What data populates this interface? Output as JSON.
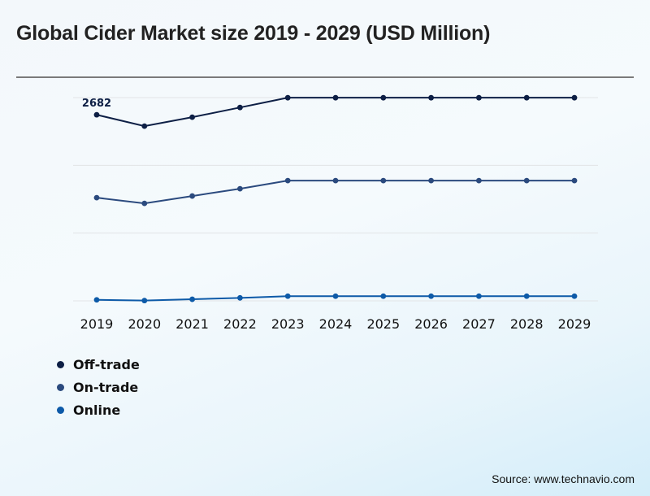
{
  "header": {
    "title": "Global Cider Market size 2019 - 2029 (USD Million)"
  },
  "chart_data": {
    "type": "line",
    "title": "Global Cider Market size 2019 - 2029 (USD Million)",
    "xlabel": "",
    "ylabel": "",
    "x": [
      "2019",
      "2020",
      "2021",
      "2022",
      "2023",
      "2024",
      "2025",
      "2026",
      "2027",
      "2028",
      "2029"
    ],
    "ylim": [
      0,
      2930
    ],
    "grid": true,
    "gridline_count": 4,
    "legend_position": "bottom-left",
    "series": [
      {
        "name": "Off-trade",
        "color": "#0d1f45",
        "values": [
          2682,
          2518,
          2647,
          2787,
          2928,
          2928,
          2928,
          2928,
          2928,
          2928,
          2928
        ]
      },
      {
        "name": "On-trade",
        "color": "#2b4a7e",
        "values": [
          1487,
          1405,
          1511,
          1616,
          1733,
          1733,
          1733,
          1733,
          1733,
          1733,
          1733
        ]
      },
      {
        "name": "Online",
        "color": "#0d5aa8",
        "values": [
          15,
          4,
          23,
          43,
          67,
          67,
          67,
          67,
          67,
          67,
          67
        ]
      }
    ],
    "annotations": [
      {
        "series": "Off-trade",
        "x": "2019",
        "text": "2682"
      }
    ]
  },
  "legend": {
    "items": [
      {
        "label": "Off-trade",
        "color": "#0d1f45"
      },
      {
        "label": "On-trade",
        "color": "#2b4a7e"
      },
      {
        "label": "Online",
        "color": "#0d5aa8"
      }
    ]
  },
  "footer": {
    "source": "Source: www.technavio.com"
  }
}
